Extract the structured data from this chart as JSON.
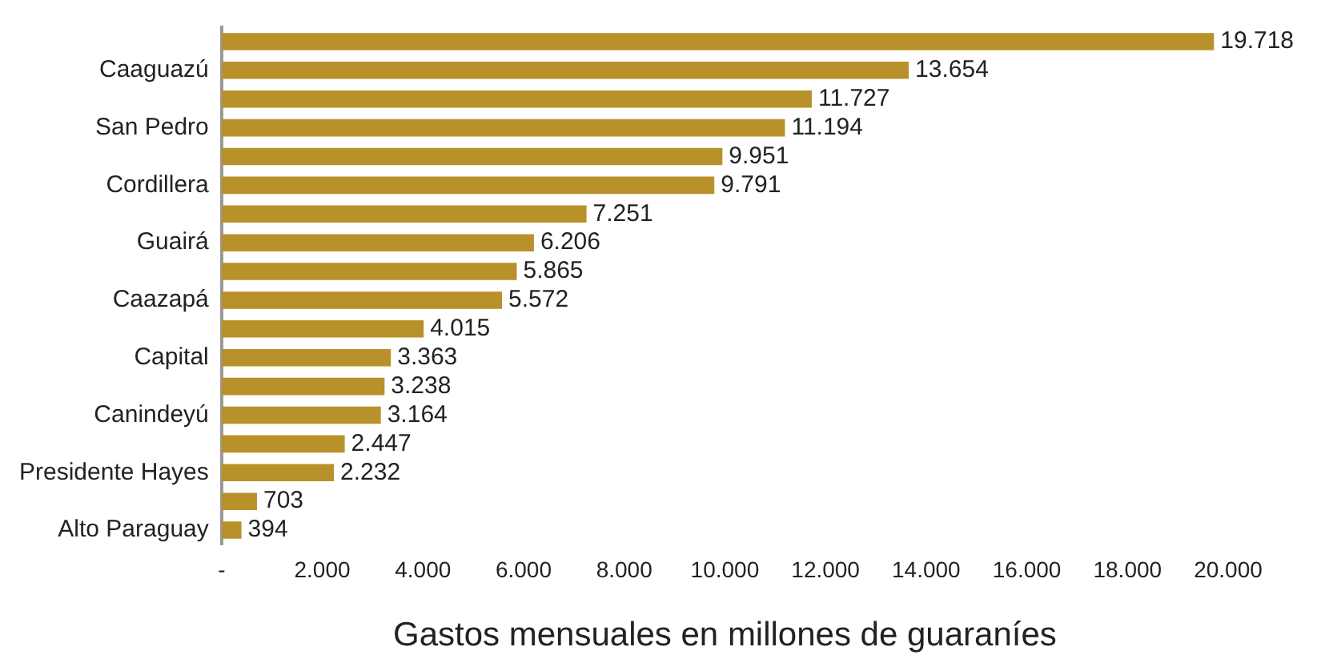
{
  "chart_data": {
    "type": "bar",
    "orientation": "horizontal",
    "xlabel": "Gastos mensuales en millones de guaraníes",
    "categories": [
      null,
      "Caaguazú",
      null,
      "San Pedro",
      null,
      "Cordillera",
      null,
      "Guairá",
      null,
      "Caazapá",
      null,
      "Capital",
      null,
      "Canindeyú",
      null,
      "Presidente Hayes",
      null,
      "Alto Paraguay"
    ],
    "values": [
      19718,
      13654,
      11727,
      11194,
      9951,
      9791,
      7251,
      6206,
      5865,
      5572,
      4015,
      3363,
      3238,
      3164,
      2447,
      2232,
      703,
      394
    ],
    "value_labels": [
      "19.718",
      "13.654",
      "11.727",
      "11.194",
      "9.951",
      "9.791",
      "7.251",
      "6.206",
      "5.865",
      "5.572",
      "4.015",
      "3.363",
      "3.238",
      "3.164",
      "2.447",
      "2.232",
      "703",
      "394"
    ],
    "color": "#b8912a",
    "xlim": [
      0,
      20000
    ],
    "xticks": [
      {
        "value": 0,
        "label": "-"
      },
      {
        "value": 2000,
        "label": "2.000"
      },
      {
        "value": 4000,
        "label": "4.000"
      },
      {
        "value": 6000,
        "label": "6.000"
      },
      {
        "value": 8000,
        "label": "8.000"
      },
      {
        "value": 10000,
        "label": "10.000"
      },
      {
        "value": 12000,
        "label": "12.000"
      },
      {
        "value": 14000,
        "label": "14.000"
      },
      {
        "value": 16000,
        "label": "16.000"
      },
      {
        "value": 18000,
        "label": "18.000"
      },
      {
        "value": 20000,
        "label": "20.000"
      }
    ],
    "grid": false,
    "legend": false
  }
}
